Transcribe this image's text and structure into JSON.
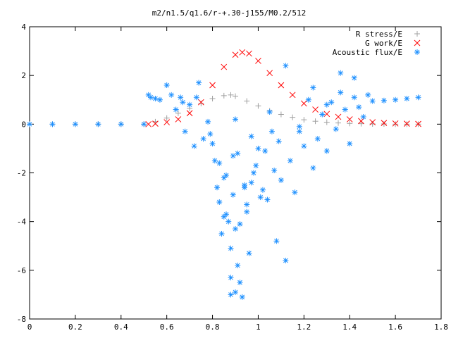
{
  "chart_data": {
    "type": "scatter",
    "title": "m2/n1.5/q1.6/r-+.30-j155/M0.2/512",
    "xlabel": "",
    "ylabel": "",
    "xlim": [
      0,
      1.8
    ],
    "ylim": [
      -8,
      4
    ],
    "x_ticks": [
      "0",
      "0.2",
      "0.4",
      "0.6",
      "0.8",
      "1",
      "1.2",
      "1.4",
      "1.6",
      "1.8"
    ],
    "y_ticks": [
      "4",
      "2",
      "0",
      "-2",
      "-4",
      "-6",
      "-8"
    ],
    "grid": false,
    "legend_position": "top-right",
    "series": [
      {
        "name": "R stress/E",
        "marker": "plus",
        "color": "#a0a0a0",
        "x": [
          0.0,
          0.1,
          0.2,
          0.3,
          0.4,
          0.5,
          0.55,
          0.6,
          0.65,
          0.7,
          0.75,
          0.8,
          0.85,
          0.88,
          0.9,
          0.95,
          1.0,
          1.05,
          1.1,
          1.15,
          1.2,
          1.25,
          1.3,
          1.35,
          1.4,
          1.45,
          1.5,
          1.55,
          1.6,
          1.65,
          1.7
        ],
        "y": [
          0,
          0,
          0,
          0,
          0,
          0,
          0.1,
          0.25,
          0.45,
          0.65,
          0.85,
          1.05,
          1.17,
          1.2,
          1.15,
          0.95,
          0.75,
          0.55,
          0.4,
          0.28,
          0.18,
          0.12,
          0.08,
          0.05,
          0.03,
          0.02,
          0.01,
          0.01,
          0,
          0,
          0
        ]
      },
      {
        "name": "G work/E",
        "marker": "cross",
        "color": "#ff0000",
        "x": [
          0.52,
          0.55,
          0.6,
          0.65,
          0.7,
          0.75,
          0.8,
          0.85,
          0.9,
          0.93,
          0.96,
          1.0,
          1.05,
          1.1,
          1.15,
          1.2,
          1.25,
          1.3,
          1.35,
          1.4,
          1.45,
          1.5,
          1.55,
          1.6,
          1.65,
          1.7
        ],
        "y": [
          0,
          0.02,
          0.08,
          0.2,
          0.45,
          0.9,
          1.6,
          2.35,
          2.85,
          2.95,
          2.9,
          2.6,
          2.1,
          1.6,
          1.2,
          0.85,
          0.6,
          0.42,
          0.3,
          0.2,
          0.13,
          0.08,
          0.05,
          0.03,
          0.02,
          0.01
        ]
      },
      {
        "name": "Acoustic flux/E",
        "marker": "star",
        "color": "#1e90ff",
        "x": [
          0.0,
          0.1,
          0.2,
          0.3,
          0.4,
          0.5,
          0.52,
          0.53,
          0.55,
          0.57,
          0.6,
          0.62,
          0.64,
          0.66,
          0.68,
          0.7,
          0.72,
          0.74,
          0.76,
          0.78,
          0.8,
          0.81,
          0.82,
          0.83,
          0.84,
          0.85,
          0.86,
          0.87,
          0.88,
          0.89,
          0.9,
          0.91,
          0.92,
          0.93,
          0.94,
          0.95,
          0.96,
          0.97,
          0.98,
          1.0,
          1.02,
          1.04,
          1.06,
          1.08,
          1.1,
          1.12,
          1.14,
          1.16,
          1.18,
          1.2,
          1.22,
          1.24,
          1.26,
          1.28,
          1.3,
          1.32,
          1.34,
          1.36,
          1.38,
          1.4,
          1.42,
          1.44,
          1.46,
          1.48,
          1.5,
          1.55,
          1.6,
          1.65,
          1.7,
          0.67,
          0.73,
          0.79,
          0.85,
          0.9,
          0.95,
          1.05,
          1.12,
          1.18,
          1.24,
          1.3,
          1.36,
          1.42,
          0.83,
          0.88,
          0.92,
          0.97,
          1.01,
          1.07,
          0.86,
          0.89,
          0.91,
          0.94,
          0.99,
          1.03,
          1.09,
          0.88,
          0.9
        ],
        "y": [
          0,
          0,
          0,
          0,
          0,
          0,
          1.2,
          1.1,
          1.05,
          1.0,
          1.6,
          1.2,
          0.6,
          1.1,
          -0.3,
          0.8,
          -0.9,
          1.7,
          -0.6,
          0.1,
          -0.8,
          -1.5,
          -2.6,
          -3.2,
          -4.5,
          -3.8,
          -2.1,
          -4.0,
          -5.1,
          -2.9,
          -6.9,
          -1.2,
          -6.5,
          -7.1,
          -2.6,
          -3.3,
          -5.3,
          -0.5,
          -2.0,
          -1.0,
          -2.7,
          -3.1,
          -0.3,
          -4.8,
          -2.3,
          -5.6,
          -1.5,
          -2.8,
          -0.1,
          -0.9,
          1.0,
          -1.8,
          -0.6,
          0.4,
          -1.1,
          0.9,
          -0.2,
          1.3,
          0.6,
          -0.8,
          1.1,
          0.7,
          0.3,
          1.2,
          0.95,
          0.97,
          1.0,
          1.05,
          1.1,
          0.9,
          1.1,
          -0.4,
          -2.2,
          0.2,
          -3.6,
          0.5,
          2.4,
          -0.3,
          1.5,
          0.8,
          2.1,
          1.9,
          -1.6,
          -7.0,
          -4.1,
          -2.4,
          -3.0,
          -1.9,
          -3.7,
          -1.3,
          -5.8,
          -2.5,
          -1.7,
          -1.1,
          -0.7,
          -6.3,
          -4.3
        ]
      }
    ]
  }
}
